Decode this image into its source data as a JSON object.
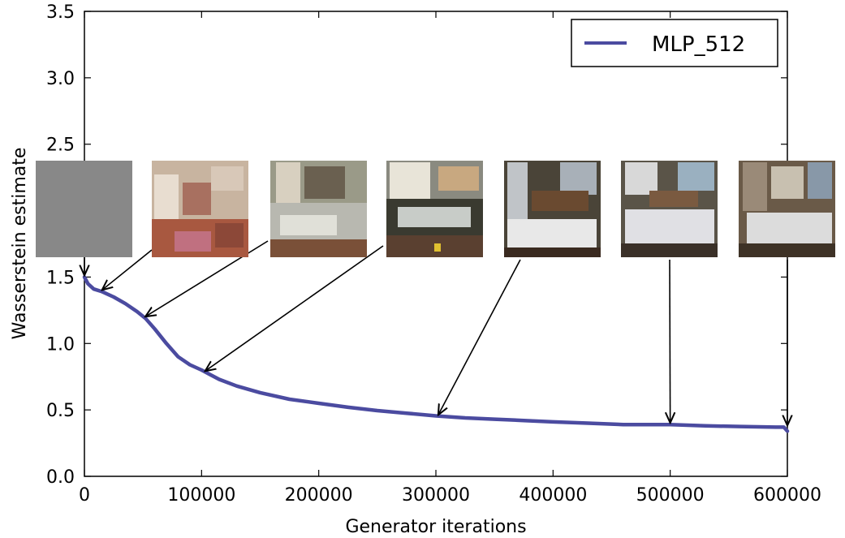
{
  "chart_data": {
    "type": "line",
    "xlabel": "Generator iterations",
    "ylabel": "Wasserstein estimate",
    "xlim": [
      0,
      600000
    ],
    "ylim": [
      0.0,
      3.5
    ],
    "x_ticks": [
      "0",
      "100000",
      "200000",
      "300000",
      "400000",
      "500000",
      "600000"
    ],
    "x_tick_values": [
      0,
      100000,
      200000,
      300000,
      400000,
      500000,
      600000
    ],
    "y_ticks": [
      "0.0",
      "0.5",
      "1.0",
      "1.5",
      "2.0",
      "2.5",
      "3.0",
      "3.5"
    ],
    "y_tick_values": [
      0.0,
      0.5,
      1.0,
      1.5,
      2.0,
      2.5,
      3.0,
      3.5
    ],
    "grid": false,
    "legend_position": "top-right",
    "series": [
      {
        "name": "MLP_512",
        "color": "#4b4ba0",
        "x": [
          0,
          3000,
          8000,
          15000,
          25000,
          35000,
          45000,
          52000,
          60000,
          70000,
          80000,
          90000,
          100000,
          115000,
          130000,
          150000,
          175000,
          200000,
          225000,
          250000,
          275000,
          300000,
          325000,
          350000,
          375000,
          400000,
          430000,
          460000,
          500000,
          530000,
          560000,
          590000,
          597000,
          600000
        ],
        "y": [
          1.5,
          1.45,
          1.41,
          1.39,
          1.35,
          1.3,
          1.24,
          1.19,
          1.11,
          1.0,
          0.9,
          0.84,
          0.8,
          0.73,
          0.68,
          0.63,
          0.58,
          0.55,
          0.52,
          0.495,
          0.475,
          0.455,
          0.44,
          0.43,
          0.42,
          0.41,
          0.4,
          0.39,
          0.39,
          0.38,
          0.375,
          0.37,
          0.37,
          0.34
        ]
      }
    ],
    "annotations": [
      {
        "type": "sample-image",
        "label": "noise",
        "points_to": [
          0,
          1.5
        ]
      },
      {
        "type": "sample-image",
        "label": "sample",
        "points_to": [
          15000,
          1.39
        ]
      },
      {
        "type": "sample-image",
        "label": "sample",
        "points_to": [
          52000,
          1.19
        ]
      },
      {
        "type": "sample-image",
        "label": "sample",
        "points_to": [
          103000,
          0.78
        ]
      },
      {
        "type": "sample-image",
        "label": "sample",
        "points_to": [
          302000,
          0.45
        ]
      },
      {
        "type": "sample-image",
        "label": "sample",
        "points_to": [
          500000,
          0.39
        ]
      },
      {
        "type": "sample-image",
        "label": "sample",
        "points_to": [
          600000,
          0.37
        ]
      }
    ]
  }
}
